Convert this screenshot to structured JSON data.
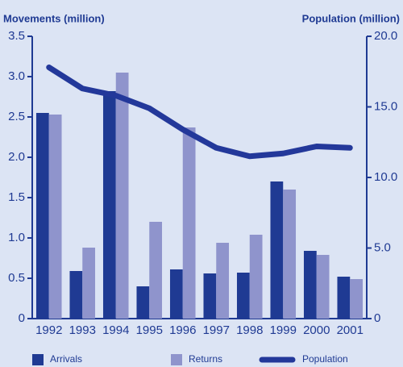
{
  "chart_data": {
    "type": "bar-line",
    "y_title": "Movements (million)",
    "y2_title": "Population  (million)",
    "categories": [
      "1992",
      "1993",
      "1994",
      "1995",
      "1996",
      "1997",
      "1998",
      "1999",
      "2000",
      "2001"
    ],
    "series": [
      {
        "name": "Arrivals",
        "type": "bar",
        "color": "#1f3a93",
        "values": [
          2.55,
          0.59,
          2.82,
          0.4,
          0.61,
          0.56,
          0.57,
          1.7,
          0.84,
          0.52
        ]
      },
      {
        "name": "Returns",
        "type": "bar",
        "color": "#8f94cc",
        "values": [
          2.53,
          0.88,
          3.05,
          1.2,
          2.37,
          0.94,
          1.04,
          1.6,
          0.79,
          0.49
        ]
      },
      {
        "name": "Population",
        "type": "line",
        "axis": "y2",
        "color": "#23389a",
        "values": [
          17.8,
          16.3,
          15.8,
          14.9,
          13.4,
          12.1,
          11.5,
          11.7,
          12.2,
          12.1
        ]
      }
    ],
    "ylim": [
      0,
      3.5
    ],
    "yticks": [
      0,
      0.5,
      {
        "value": 1,
        "label": "1.0"
      },
      1.5,
      {
        "value": 2,
        "label": "2.0"
      },
      2.5,
      {
        "value": 3,
        "label": "3.0"
      },
      3.5
    ],
    "y2lim": [
      0,
      20
    ],
    "y2ticks": [
      0,
      {
        "value": 5,
        "label": "5.0"
      },
      {
        "value": 10,
        "label": "10.0"
      },
      {
        "value": 15,
        "label": "15.0"
      },
      {
        "value": 20,
        "label": "20.0"
      }
    ]
  }
}
